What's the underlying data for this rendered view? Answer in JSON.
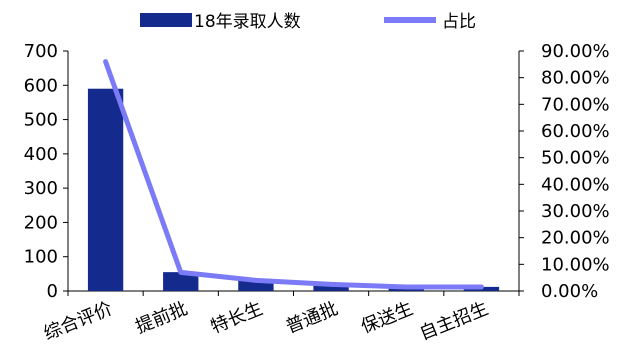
{
  "chart_data": {
    "type": "bar",
    "categories": [
      "综合评价",
      "提前批",
      "特长生",
      "普通批",
      "保送生",
      "自主招生"
    ],
    "series": [
      {
        "name": "18年录取人数",
        "type": "bar",
        "axis": "left",
        "values": [
          590,
          55,
          32,
          20,
          12,
          12
        ],
        "color": "#142A8C"
      },
      {
        "name": "占比",
        "type": "line",
        "axis": "right",
        "values": [
          0.86,
          0.07,
          0.04,
          0.025,
          0.015,
          0.015
        ],
        "color": "#7B7BF7"
      }
    ],
    "ylim": [
      0,
      700
    ],
    "yticks": [
      "0",
      "100",
      "200",
      "300",
      "400",
      "500",
      "600",
      "700"
    ],
    "y2lim": [
      0,
      0.9
    ],
    "y2ticks": [
      "0.00%",
      "10.00%",
      "20.00%",
      "30.00%",
      "40.00%",
      "50.00%",
      "60.00%",
      "70.00%",
      "80.00%",
      "90.00%"
    ],
    "legend": {
      "placement": "top",
      "entries": [
        "18年录取人数",
        "占比"
      ]
    },
    "grid": false
  }
}
